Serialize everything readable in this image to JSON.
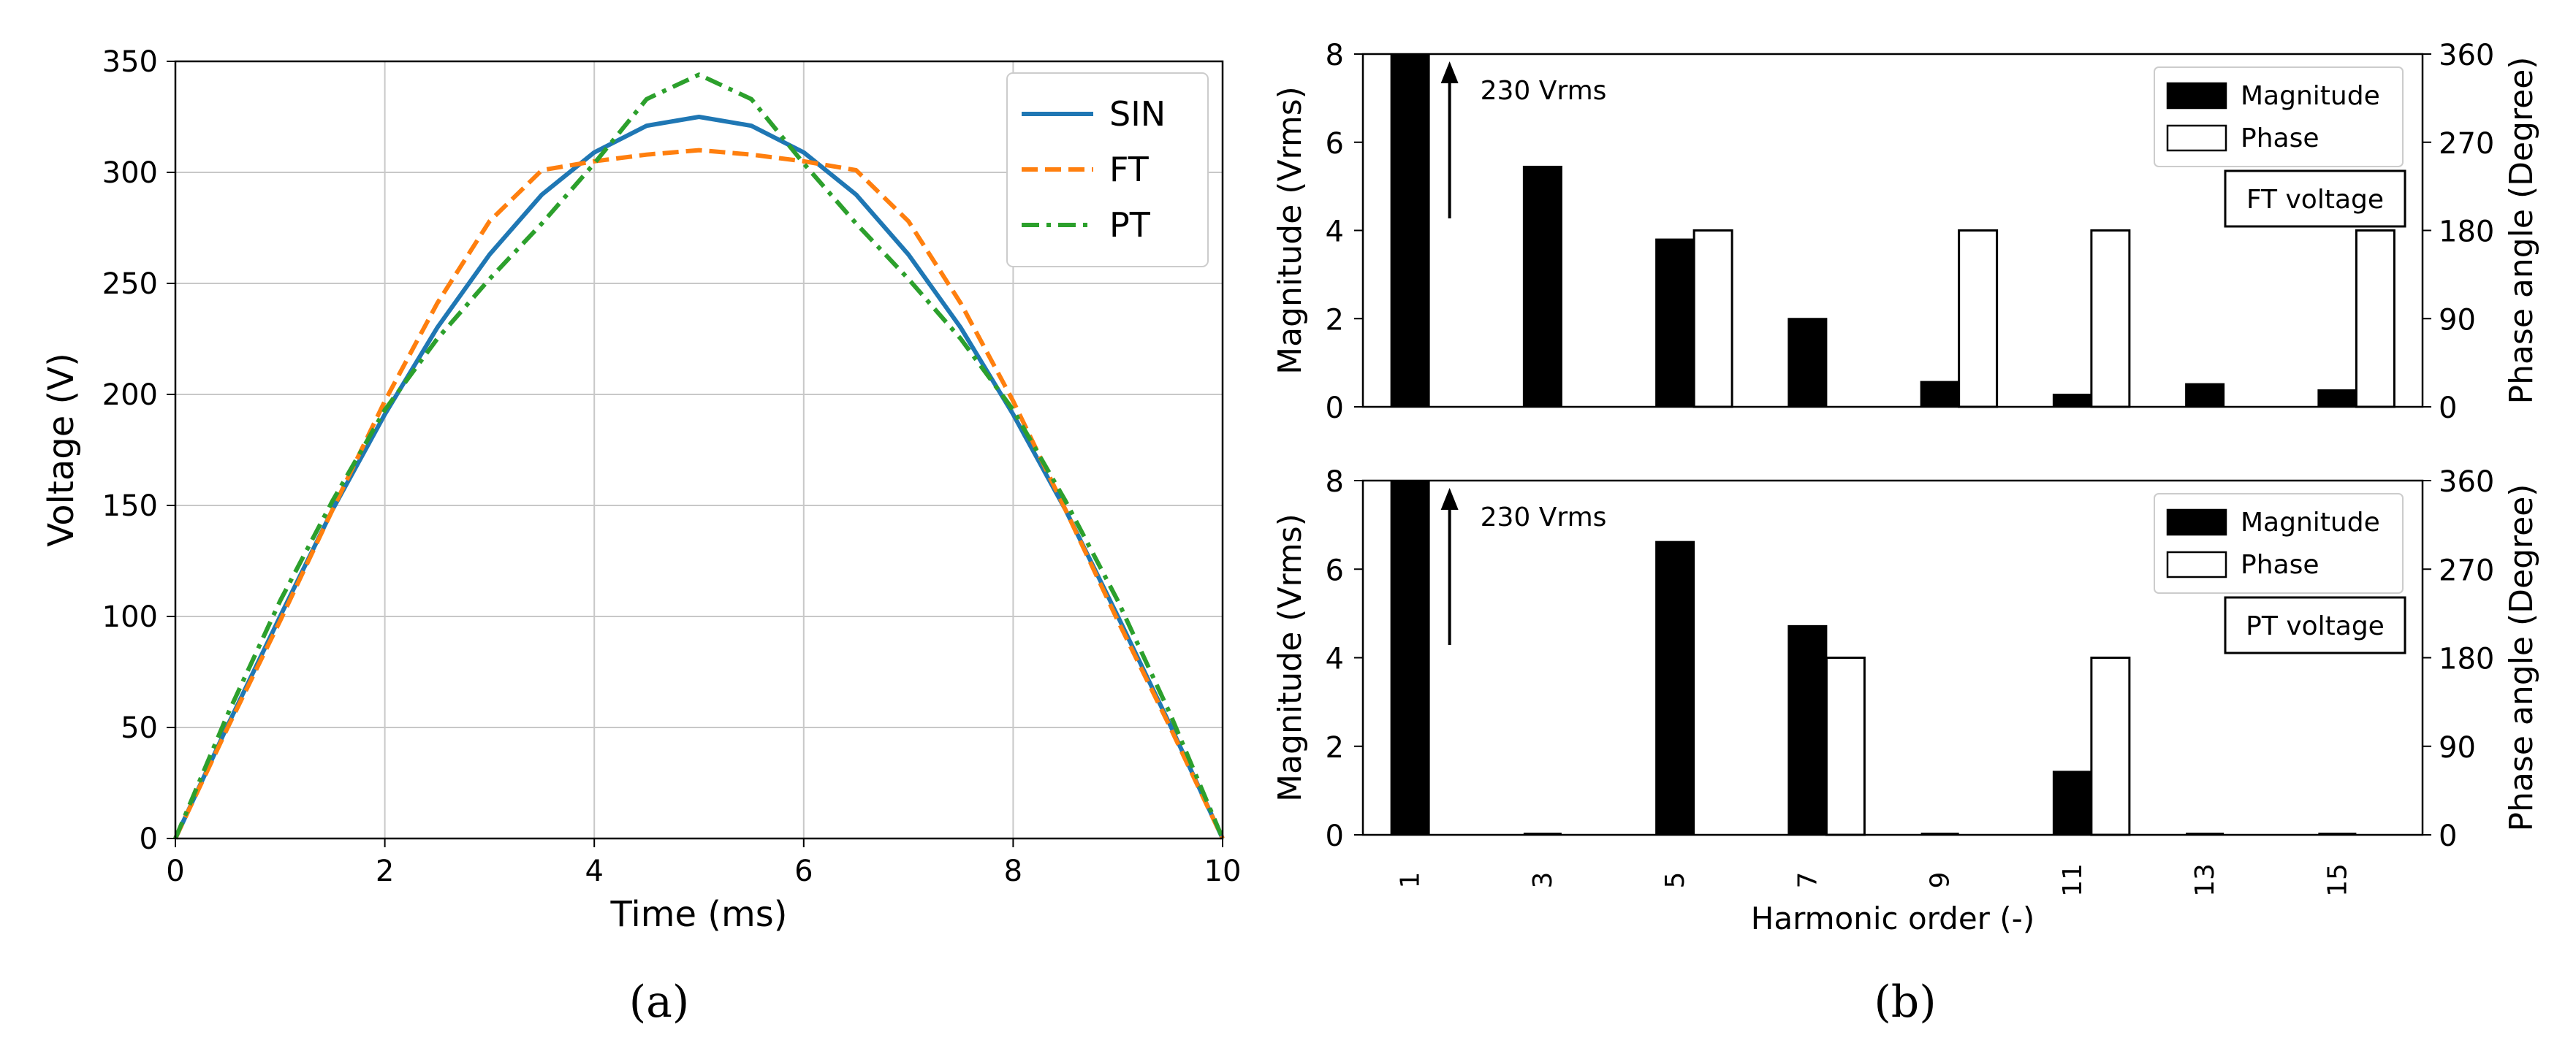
{
  "captions": {
    "a": "(a)",
    "b": "(b)"
  },
  "chart_data": [
    {
      "type": "line",
      "xlabel": "Time (ms)",
      "ylabel": "Voltage (V)",
      "xlim": [
        0,
        10
      ],
      "ylim": [
        0,
        350
      ],
      "xticks": [
        0,
        2,
        4,
        6,
        8,
        10
      ],
      "yticks": [
        0,
        50,
        100,
        150,
        200,
        250,
        300,
        350
      ],
      "grid": true,
      "legend_position": "top-right",
      "series": [
        {
          "name": "SIN",
          "color": "#1f77b4",
          "style": "solid",
          "x": [
            0,
            0.5,
            1,
            1.5,
            2,
            2.5,
            3,
            3.5,
            4,
            4.5,
            5,
            5.5,
            6,
            6.5,
            7,
            7.5,
            8,
            8.5,
            9,
            9.5,
            10
          ],
          "y": [
            0,
            51,
            100,
            148,
            191,
            230,
            263,
            290,
            309,
            321,
            325,
            321,
            309,
            290,
            263,
            230,
            191,
            148,
            100,
            51,
            0
          ]
        },
        {
          "name": "FT",
          "color": "#ff7f0e",
          "style": "dashed",
          "x": [
            0,
            0.5,
            1,
            1.5,
            2,
            2.5,
            3,
            3.5,
            4,
            4.5,
            5,
            5.5,
            6,
            6.5,
            7,
            7.5,
            8,
            8.5,
            9,
            9.5,
            10
          ],
          "y": [
            0,
            50,
            98,
            148,
            197,
            241,
            278,
            301,
            305,
            308,
            310,
            308,
            305,
            301,
            278,
            241,
            197,
            148,
            98,
            50,
            0
          ]
        },
        {
          "name": "PT",
          "color": "#2ca02c",
          "style": "dashdot",
          "x": [
            0,
            0.5,
            1,
            1.5,
            2,
            2.5,
            3,
            3.5,
            4,
            4.5,
            5,
            5.5,
            6,
            6.5,
            7,
            7.5,
            8,
            8.5,
            9,
            9.5,
            10
          ],
          "y": [
            0,
            56,
            107,
            152,
            193,
            225,
            252,
            277,
            304,
            333,
            344,
            333,
            304,
            277,
            252,
            225,
            193,
            152,
            107,
            56,
            0
          ]
        }
      ]
    },
    {
      "type": "bar",
      "xlabel": "",
      "ylabel": "Magnitude (Vrms)",
      "ylabel_right": "Phase angle (Degree)",
      "ylim": [
        0,
        8
      ],
      "ylim_right": [
        0,
        360
      ],
      "yticks": [
        0,
        2,
        4,
        6,
        8
      ],
      "yticks_right": [
        0,
        90,
        180,
        270,
        360
      ],
      "categories": [
        "1",
        "3",
        "5",
        "7",
        "9",
        "11",
        "13",
        "15"
      ],
      "series": [
        {
          "name": "Magnitude",
          "color": "#000000",
          "axis": "left",
          "values": [
            8,
            5.45,
            3.8,
            2.0,
            0.57,
            0.28,
            0.52,
            0.38
          ]
        },
        {
          "name": "Phase",
          "color": "#ffffff",
          "axis": "right",
          "values": [
            0,
            0,
            180,
            0,
            180,
            180,
            0,
            180
          ]
        }
      ],
      "annotation": "230 Vrms",
      "label_box": "FT voltage",
      "legend_position": "top-right"
    },
    {
      "type": "bar",
      "xlabel": "Harmonic order (-)",
      "ylabel": "Magnitude (Vrms)",
      "ylabel_right": "Phase angle (Degree)",
      "ylim": [
        0,
        8
      ],
      "ylim_right": [
        0,
        360
      ],
      "yticks": [
        0,
        2,
        4,
        6,
        8
      ],
      "yticks_right": [
        0,
        90,
        180,
        270,
        360
      ],
      "categories": [
        "1",
        "3",
        "5",
        "7",
        "9",
        "11",
        "13",
        "15"
      ],
      "series": [
        {
          "name": "Magnitude",
          "color": "#000000",
          "axis": "left",
          "values": [
            8,
            0,
            6.62,
            4.72,
            0,
            1.43,
            0,
            0
          ]
        },
        {
          "name": "Phase",
          "color": "#ffffff",
          "axis": "right",
          "values": [
            0,
            0,
            0,
            180,
            0,
            180,
            0,
            0
          ]
        }
      ],
      "annotation": "230 Vrms",
      "label_box": "PT voltage",
      "legend_position": "top-right"
    }
  ]
}
